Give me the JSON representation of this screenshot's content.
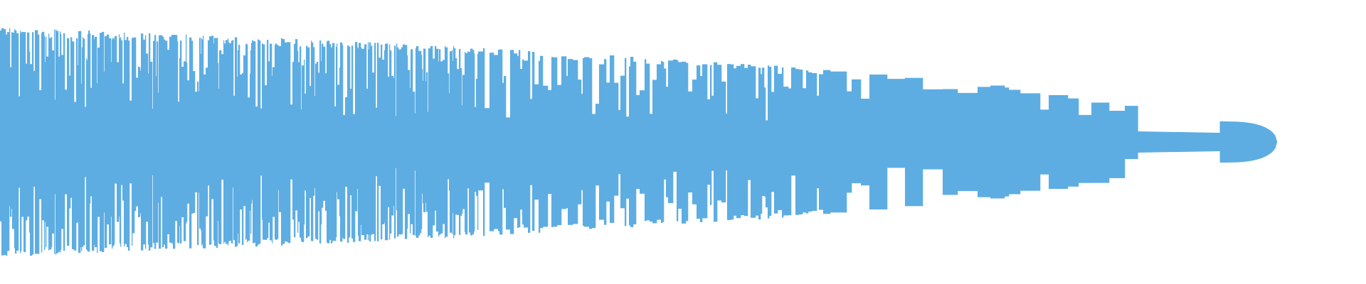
{
  "chart_data": {
    "type": "area",
    "title": "",
    "xlabel": "",
    "ylabel": "",
    "grid": false,
    "legend": "none",
    "mirrored": true,
    "color": "#5dade2",
    "ylim": [
      -1,
      1
    ],
    "envelope": {
      "position": [
        0.0,
        0.31,
        0.57,
        0.73,
        0.81,
        0.833,
        0.834,
        0.892,
        0.893,
        0.935
      ],
      "peak_amplitude": [
        0.81,
        0.69,
        0.54,
        0.4,
        0.27,
        0.26,
        0.075,
        0.065,
        0.145,
        0.0
      ]
    }
  }
}
